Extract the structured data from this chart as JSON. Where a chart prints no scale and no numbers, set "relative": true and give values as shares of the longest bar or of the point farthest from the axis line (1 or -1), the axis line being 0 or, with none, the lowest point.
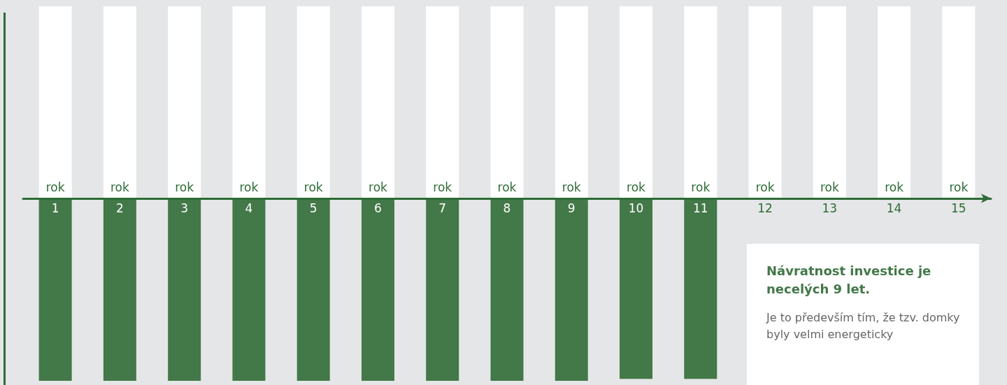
{
  "chart_data": {
    "type": "bar",
    "relative": true,
    "stacked": true,
    "categories": [
      "rok\n1",
      "rok\n2",
      "rok\n3",
      "rok\n4",
      "rok\n5",
      "rok\n6",
      "rok\n7",
      "rok\n8",
      "rok\n9",
      "rok\n10",
      "rok\n11",
      "rok\n12",
      "rok\n13",
      "rok\n14",
      "rok\n15"
    ],
    "series": [
      {
        "color": "#ffffff",
        "values": [
          1,
          1,
          1,
          1,
          1,
          1,
          1,
          1,
          1,
          1,
          1,
          1,
          1,
          1,
          1
        ]
      },
      {
        "color": "#437848",
        "values": [
          -0.95,
          -0.95,
          -0.95,
          -0.95,
          -0.95,
          -0.95,
          -0.95,
          -0.95,
          -0.95,
          -0.94,
          -0.94,
          null,
          null,
          null,
          null
        ]
      }
    ],
    "annotations": [
      "Návratnost investice je necelých 9 let.",
      "Je to především tím, že tzv. domky byly velmi energeticky"
    ]
  }
}
